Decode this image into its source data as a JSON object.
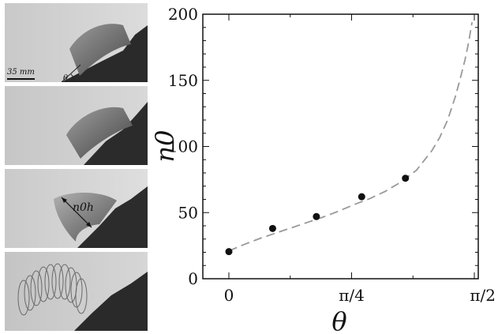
{
  "photo_panels": {
    "scale_label": "35 mm",
    "angle_label": "θ",
    "length_label": "n0h"
  },
  "chart_data": {
    "type": "scatter",
    "xlabel": "θ",
    "ylabel": "n0",
    "xlim": [
      0,
      1.5708
    ],
    "ylim": [
      0,
      200
    ],
    "x_ticks": [
      {
        "value": 0,
        "label": "0"
      },
      {
        "value": 0.7854,
        "label": "π/4"
      },
      {
        "value": 1.5708,
        "label": "π/2"
      }
    ],
    "y_ticks": [
      {
        "value": 0,
        "label": "0"
      },
      {
        "value": 50,
        "label": "50"
      },
      {
        "value": 100,
        "label": "100"
      },
      {
        "value": 150,
        "label": "150"
      },
      {
        "value": 200,
        "label": "200"
      }
    ],
    "grid": false,
    "series": [
      {
        "kind": "points",
        "marker": "filled-circle",
        "color": "#111111",
        "x": [
          0.0,
          0.28,
          0.56,
          0.85,
          1.13
        ],
        "y": [
          20.5,
          38,
          47,
          62,
          76
        ]
      },
      {
        "kind": "model-curve",
        "style": "dashed",
        "color": "#999999",
        "x": [
          0.0,
          0.1,
          0.2,
          0.3,
          0.4,
          0.5,
          0.6,
          0.7,
          0.8,
          0.9,
          1.0,
          1.1,
          1.2,
          1.3,
          1.35,
          1.4,
          1.45,
          1.48,
          1.51,
          1.53,
          1.545,
          1.556
        ],
        "y": [
          21,
          26,
          30.5,
          34.5,
          38.5,
          42.5,
          46.5,
          51,
          56,
          60.5,
          66,
          73,
          82,
          97,
          107,
          120,
          138,
          151,
          165,
          176,
          186,
          194
        ]
      }
    ]
  }
}
